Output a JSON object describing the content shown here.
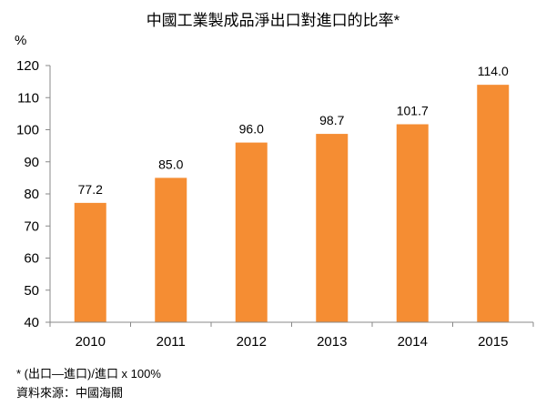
{
  "chart_data": {
    "type": "bar",
    "title": "中國工業製成品淨出口對進口的比率*",
    "ylabel": "%",
    "xlabel": "",
    "categories": [
      "2010",
      "2011",
      "2012",
      "2013",
      "2014",
      "2015"
    ],
    "values": [
      77.2,
      85.0,
      96.0,
      98.7,
      101.7,
      114.0
    ],
    "value_labels": [
      "77.2",
      "85.0",
      "96.0",
      "98.7",
      "101.7",
      "114.0"
    ],
    "ylim": [
      40,
      120
    ],
    "yticks": [
      "40",
      "50",
      "60",
      "70",
      "80",
      "90",
      "100",
      "110",
      "120"
    ],
    "grid": false,
    "bar_color": "#F58D33"
  },
  "footnotes": {
    "formula": "* (出口—進口)/進口 x 100%",
    "source": "資料來源：中國海關"
  }
}
